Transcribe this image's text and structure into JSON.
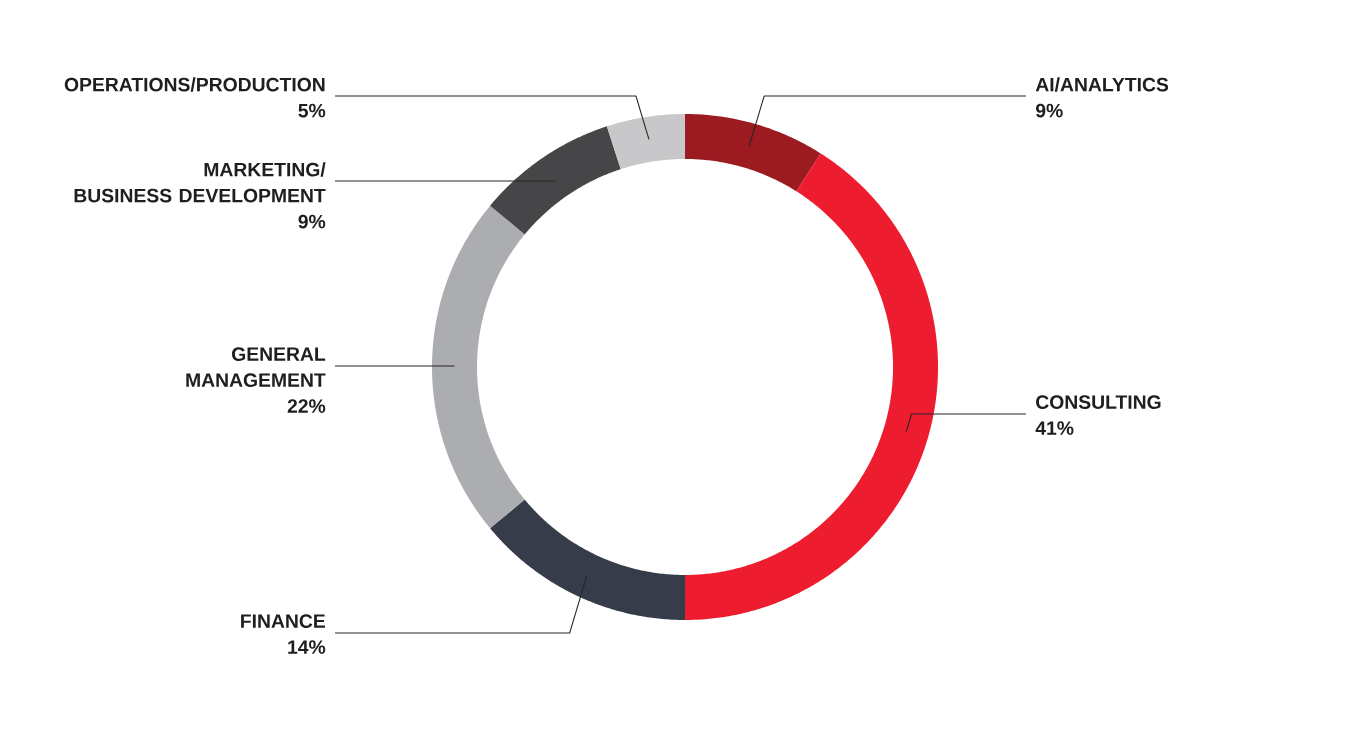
{
  "chart_data": {
    "type": "donut",
    "categories": [
      "AI/ANALYTICS",
      "CONSULTING",
      "FINANCE",
      "GENERAL MANAGEMENT",
      "MARKETING/ BUSINESS DEVELOPMENT",
      "OPERATIONS/PRODUCTION"
    ],
    "values": [
      9,
      41,
      14,
      22,
      9,
      5
    ],
    "value_labels": [
      "9%",
      "41%",
      "14%",
      "22%",
      "9%",
      "5%"
    ],
    "colors": [
      "#9b1b20",
      "#ed1c2e",
      "#363c4a",
      "#acadb0",
      "#464648",
      "#c8c8ca"
    ]
  }
}
